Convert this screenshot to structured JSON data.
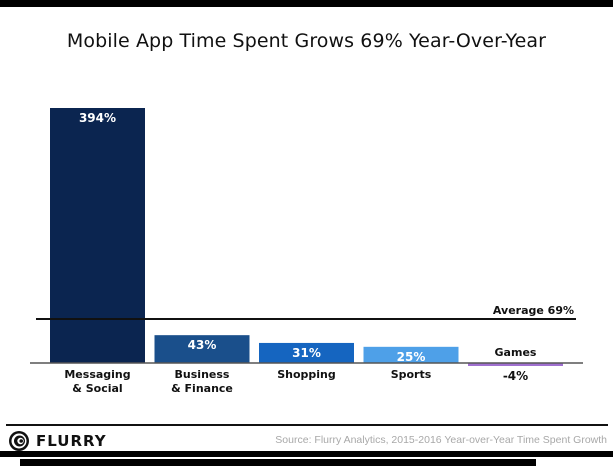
{
  "chart_data": {
    "type": "bar",
    "title": "Mobile App Time Spent Grows 69% Year-Over-Year",
    "categories": [
      "Messaging & Social",
      "Business & Finance",
      "Shopping",
      "Sports",
      "Games"
    ],
    "category_lines": [
      [
        "Messaging",
        "& Social"
      ],
      [
        "Business",
        "& Finance"
      ],
      [
        "Shopping"
      ],
      [
        "Sports"
      ],
      [
        "Games"
      ]
    ],
    "values": [
      394,
      43,
      31,
      25,
      -4
    ],
    "value_labels": [
      "394%",
      "43%",
      "31%",
      "25%",
      "-4%"
    ],
    "colors": [
      "#0b2550",
      "#1a4f8b",
      "#1565c0",
      "#4ea0e8",
      "#a070d0"
    ],
    "unit": "%",
    "reference_line": {
      "label": "Average 69%",
      "value": 69
    },
    "xlabel": "",
    "ylabel": "",
    "ylim": [
      -4,
      394
    ],
    "grid": false,
    "legend": "none"
  },
  "footer": {
    "brand": "FLURRY",
    "source": "Source: Flurry Analytics, 2015-2016 Year-over-Year Time Spent Growth"
  }
}
